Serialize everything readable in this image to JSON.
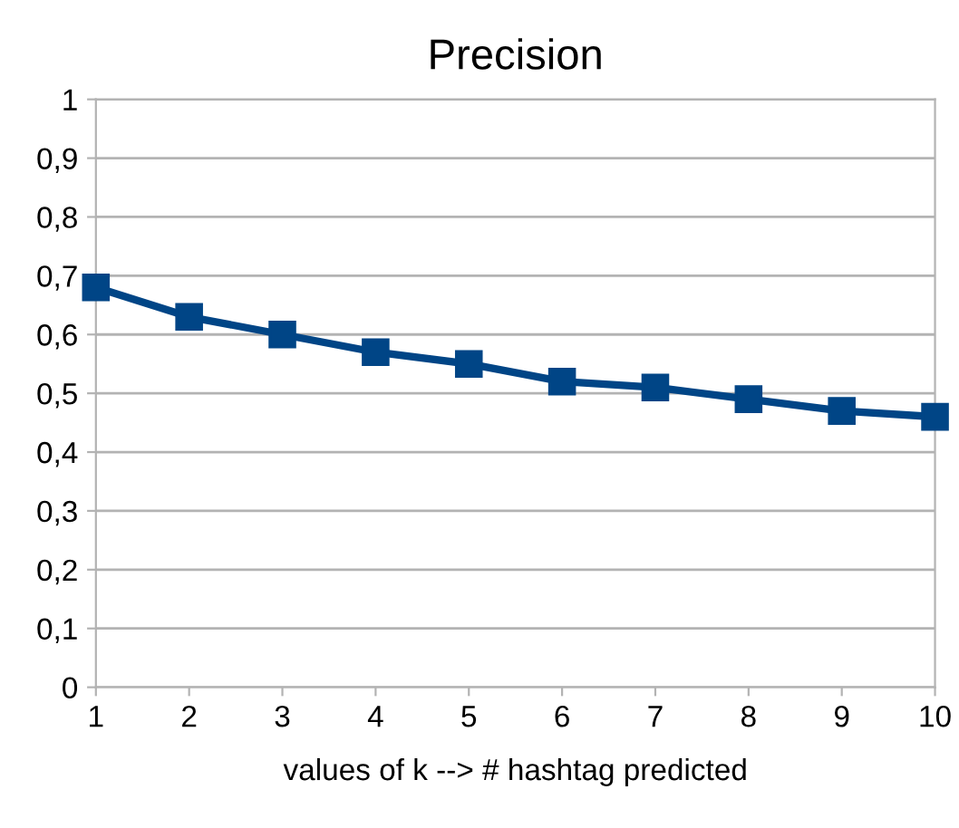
{
  "chart_data": {
    "type": "line",
    "title": "Precision",
    "xlabel": "values of k --> # hashtag predicted",
    "x": [
      1,
      2,
      3,
      4,
      5,
      6,
      7,
      8,
      9,
      10
    ],
    "series": [
      {
        "color": "#004586",
        "values": [
          0.68,
          0.63,
          0.6,
          0.57,
          0.55,
          0.52,
          0.51,
          0.49,
          0.47,
          0.46
        ]
      }
    ],
    "xlim": [
      1,
      10
    ],
    "xticks": [
      1,
      2,
      3,
      4,
      5,
      6,
      7,
      8,
      9,
      10
    ],
    "ylim": [
      0,
      1
    ],
    "yticks": [
      0,
      {
        "value": 0.1,
        "label": "0,1"
      },
      {
        "value": 0.2,
        "label": "0,2"
      },
      {
        "value": 0.3,
        "label": "0,3"
      },
      {
        "value": 0.4,
        "label": "0,4"
      },
      {
        "value": 0.5,
        "label": "0,5"
      },
      {
        "value": 0.6,
        "label": "0,6"
      },
      {
        "value": 0.7,
        "label": "0,7"
      },
      {
        "value": 0.8,
        "label": "0,8"
      },
      {
        "value": 0.9,
        "label": "0,9"
      },
      1
    ],
    "grid": "y",
    "marker": "square",
    "line_style": "solid"
  }
}
